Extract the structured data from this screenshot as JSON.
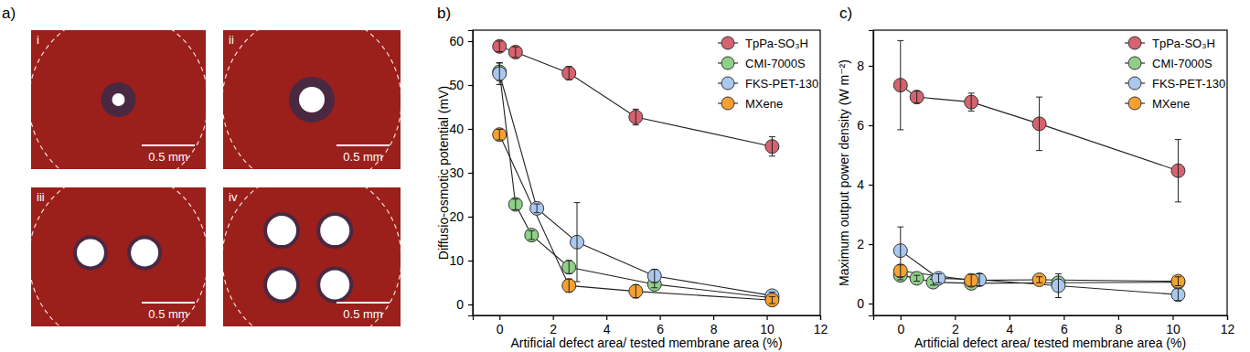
{
  "figure": {
    "panel_label": "a)",
    "images": [
      {
        "label": "i",
        "scale_bar": "0.5 mm"
      },
      {
        "label": "ii",
        "scale_bar": "0.5 mm"
      },
      {
        "label": "iii",
        "scale_bar": "0.5 mm"
      },
      {
        "label": "iv",
        "scale_bar": "0.5 mm"
      }
    ]
  },
  "chart_data": [
    {
      "type": "line",
      "annotations": [
        "b)"
      ],
      "x_label": "Artificial defect area/ tested membrane area (%)",
      "y_label": "Diffusio-osmotic potential (mV)",
      "xlim": [
        -1,
        12
      ],
      "xticks": [
        0,
        2,
        4,
        6,
        8,
        10,
        12
      ],
      "ylim": [
        -2.5,
        62.5
      ],
      "yticks": [
        0,
        10,
        20,
        30,
        40,
        50,
        60
      ],
      "legend": "upper right",
      "marker": "circle",
      "series": [
        {
          "name": "TpPa-SO₃H",
          "color": "#d5636f",
          "x": [
            0,
            0.6,
            2.6,
            5.1,
            10.2
          ],
          "values": [
            58.8,
            57.5,
            52.7,
            42.7,
            36
          ],
          "errors": [
            1.2,
            1.2,
            1.5,
            1.8,
            2.2
          ]
        },
        {
          "name": "CMI-7000S",
          "color": "#8fcf88",
          "x": [
            0,
            0.6,
            1.2,
            2.6,
            5.8,
            10.2
          ],
          "values": [
            53,
            22.8,
            15.8,
            8.5,
            4.6,
            1.5
          ],
          "errors": [
            2,
            1.2,
            1,
            1.5,
            0.8,
            0.5
          ]
        },
        {
          "name": "FKS-PET-130",
          "color": "#aac8ee",
          "x": [
            0,
            1.4,
            2.9,
            5.8,
            10.2
          ],
          "values": [
            52.6,
            21.9,
            14.2,
            6.5,
            2
          ],
          "errors": [
            2.5,
            1,
            9,
            1.5,
            0.8
          ]
        },
        {
          "name": "MXene",
          "color": "#f5a131",
          "x": [
            0,
            2.6,
            5.1,
            10.2
          ],
          "values": [
            38.7,
            4.3,
            3,
            1
          ],
          "errors": [
            1.2,
            1.5,
            1.5,
            0.8
          ]
        }
      ]
    },
    {
      "type": "line",
      "annotations": [
        "c)"
      ],
      "x_label": "Artificial defect area/ tested membrane area (%)",
      "y_label": "Maximum output power density (W m⁻²)",
      "xlim": [
        -1,
        12
      ],
      "xticks": [
        0,
        2,
        4,
        6,
        8,
        10,
        12
      ],
      "ylim": [
        -0.4,
        9.2
      ],
      "yticks": [
        0,
        2,
        4,
        6,
        8
      ],
      "legend": "upper right",
      "marker": "circle",
      "series": [
        {
          "name": "TpPa-SO₃H",
          "color": "#d5636f",
          "x": [
            0,
            0.6,
            2.6,
            5.1,
            10.2
          ],
          "values": [
            7.35,
            6.95,
            6.78,
            6.05,
            4.47
          ],
          "errors": [
            1.5,
            0.2,
            0.3,
            0.9,
            1.05
          ]
        },
        {
          "name": "CMI-7000S",
          "color": "#8fcf88",
          "x": [
            0,
            0.6,
            1.2,
            2.6,
            5.8,
            10.2
          ],
          "values": [
            0.95,
            0.85,
            0.72,
            0.68,
            0.7,
            0.72
          ],
          "errors": [
            0.15,
            0.1,
            0.1,
            0.1,
            0.1,
            0.1
          ]
        },
        {
          "name": "FKS-PET-130",
          "color": "#aac8ee",
          "x": [
            0,
            1.4,
            2.9,
            5.8,
            10.2
          ],
          "values": [
            1.78,
            0.85,
            0.8,
            0.6,
            0.3
          ],
          "errors": [
            0.8,
            0.15,
            0.2,
            0.4,
            0.2
          ]
        },
        {
          "name": "MXene",
          "color": "#f5a131",
          "x": [
            0,
            2.6,
            5.1,
            10.2
          ],
          "values": [
            1.1,
            0.78,
            0.8,
            0.75
          ],
          "errors": [
            0.2,
            0.2,
            0.1,
            0.15
          ]
        }
      ]
    }
  ]
}
